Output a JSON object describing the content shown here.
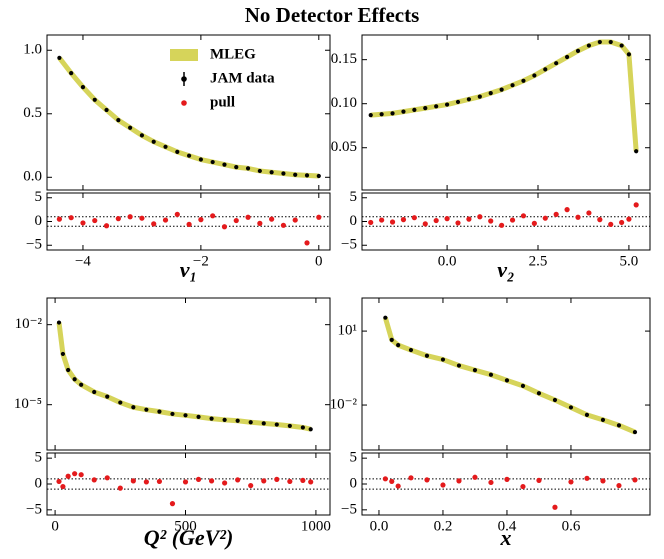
{
  "title": "No Detector Effects",
  "chart_data": [
    {
      "type": "line",
      "xlabel": "ν₁",
      "legend": "upper right",
      "xlim": [
        -4.61,
        0.19
      ],
      "xticks": [
        {
          "value": -4,
          "label": "−4"
        },
        {
          "value": -2,
          "label": "−2"
        },
        0
      ],
      "ylim": [
        -0.1,
        1.12
      ],
      "yticks": [
        {
          "value": 0,
          "label": "0.0"
        },
        0.5,
        {
          "value": 1,
          "label": "1.0"
        }
      ],
      "log_y": false,
      "pull_ylim": [
        -6,
        6
      ],
      "pull_yticks": [
        5,
        0,
        {
          "value": -5,
          "label": "−5"
        }
      ],
      "reference_lines": [
        -1,
        1
      ],
      "x": [
        -4.4,
        -4.2,
        -4.0,
        -3.8,
        -3.6,
        -3.4,
        -3.2,
        -3.0,
        -2.8,
        -2.6,
        -2.4,
        -2.2,
        -2.0,
        -1.8,
        -1.6,
        -1.4,
        -1.2,
        -1.0,
        -0.8,
        -0.6,
        -0.4,
        -0.2,
        0.0
      ],
      "series": [
        {
          "name": "MLEG",
          "color": "#d6d45a",
          "values": [
            0.94,
            0.82,
            0.71,
            0.61,
            0.53,
            0.45,
            0.39,
            0.33,
            0.28,
            0.24,
            0.2,
            0.17,
            0.14,
            0.12,
            0.1,
            0.08,
            0.07,
            0.05,
            0.04,
            0.03,
            0.02,
            0.015,
            0.01
          ]
        },
        {
          "name": "JAM data",
          "color": "#000000",
          "values": [
            0.94,
            0.82,
            0.71,
            0.61,
            0.53,
            0.45,
            0.39,
            0.33,
            0.28,
            0.24,
            0.2,
            0.17,
            0.14,
            0.12,
            0.1,
            0.08,
            0.07,
            0.05,
            0.04,
            0.03,
            0.02,
            0.015,
            0.01
          ]
        },
        {
          "name": "pull",
          "color": "#e41a1c",
          "axis": "pull",
          "values": [
            0.5,
            0.8,
            -0.3,
            0.2,
            -0.9,
            0.6,
            1.0,
            0.7,
            -0.5,
            0.3,
            1.5,
            -0.6,
            0.4,
            1.2,
            -1.1,
            0.2,
            0.9,
            -0.4,
            0.5,
            -0.8,
            0.3,
            -4.5,
            0.9
          ]
        }
      ]
    },
    {
      "type": "line",
      "xlabel": "ν₂",
      "xlim": [
        -2.34,
        5.58
      ],
      "xticks": [
        {
          "value": 0,
          "label": "0.0"
        },
        2.5,
        {
          "value": 5,
          "label": "5.0"
        }
      ],
      "ylim": [
        0.002,
        0.178
      ],
      "yticks": [
        0.05,
        {
          "value": 0.1,
          "label": "0.10"
        },
        0.15
      ],
      "log_y": false,
      "pull_ylim": [
        -6,
        6
      ],
      "pull_yticks": [
        5,
        0,
        {
          "value": -5,
          "label": "−5"
        }
      ],
      "reference_lines": [
        -1,
        1
      ],
      "x": [
        -2.1,
        -1.8,
        -1.5,
        -1.2,
        -0.9,
        -0.6,
        -0.3,
        0,
        0.3,
        0.6,
        0.9,
        1.2,
        1.5,
        1.8,
        2.1,
        2.4,
        2.7,
        3.0,
        3.3,
        3.6,
        3.9,
        4.2,
        4.5,
        4.8,
        5.0,
        5.2
      ],
      "series": [
        {
          "name": "MLEG",
          "color": "#d6d45a",
          "values": [
            0.087,
            0.088,
            0.089,
            0.091,
            0.093,
            0.095,
            0.097,
            0.099,
            0.102,
            0.105,
            0.108,
            0.112,
            0.116,
            0.121,
            0.126,
            0.132,
            0.139,
            0.146,
            0.153,
            0.16,
            0.166,
            0.17,
            0.17,
            0.166,
            0.156,
            0.046
          ]
        },
        {
          "name": "JAM data",
          "color": "#000000",
          "values": [
            0.087,
            0.088,
            0.089,
            0.091,
            0.093,
            0.095,
            0.097,
            0.099,
            0.102,
            0.105,
            0.108,
            0.112,
            0.116,
            0.121,
            0.126,
            0.132,
            0.139,
            0.146,
            0.153,
            0.16,
            0.166,
            0.17,
            0.17,
            0.166,
            0.156,
            0.046
          ]
        },
        {
          "name": "pull",
          "color": "#e41a1c",
          "axis": "pull",
          "values": [
            -0.2,
            0.3,
            -0.1,
            0.4,
            0.8,
            -0.5,
            0.2,
            0.6,
            -0.3,
            0.5,
            1.0,
            0.1,
            -0.8,
            0.3,
            1.2,
            -0.4,
            0.7,
            1.5,
            2.5,
            0.9,
            1.8,
            0.4,
            -0.6,
            -0.2,
            0.5,
            3.5
          ]
        }
      ]
    },
    {
      "type": "line",
      "xlabel": "Q² (GeV²)",
      "xlim": [
        -31,
        1054
      ],
      "xticks": [
        0,
        500,
        1000
      ],
      "ylim": [
        2e-07,
        0.1
      ],
      "yticks": [
        {
          "value": 0.01,
          "label": "10⁻²"
        },
        {
          "value": 1e-05,
          "label": "10⁻⁵"
        }
      ],
      "log_y": true,
      "pull_ylim": [
        -6,
        6
      ],
      "pull_yticks": [
        5,
        0,
        {
          "value": -5,
          "label": "−5"
        }
      ],
      "reference_lines": [
        -1,
        1
      ],
      "x": [
        15,
        30,
        50,
        75,
        100,
        150,
        200,
        250,
        300,
        350,
        400,
        450,
        500,
        550,
        600,
        650,
        700,
        750,
        800,
        850,
        900,
        950,
        980
      ],
      "series": [
        {
          "name": "MLEG",
          "color": "#d6d45a",
          "values": [
            0.012,
            0.0008,
            0.0002,
            9e-05,
            5.6e-05,
            3e-05,
            2e-05,
            1.2e-05,
            8e-06,
            6.5e-06,
            5.5e-06,
            4.5e-06,
            4e-06,
            3.5e-06,
            3e-06,
            2.7e-06,
            2.5e-06,
            2.2e-06,
            2e-06,
            1.8e-06,
            1.6e-06,
            1.4e-06,
            1.2e-06
          ]
        },
        {
          "name": "JAM data",
          "color": "#000000",
          "values": [
            0.012,
            0.0008,
            0.0002,
            9e-05,
            5.6e-05,
            3e-05,
            2e-05,
            1.2e-05,
            8e-06,
            6.5e-06,
            5.5e-06,
            4.5e-06,
            4e-06,
            3.5e-06,
            3e-06,
            2.7e-06,
            2.5e-06,
            2.2e-06,
            2e-06,
            1.8e-06,
            1.6e-06,
            1.4e-06,
            1.2e-06
          ]
        },
        {
          "name": "pull",
          "color": "#e41a1c",
          "axis": "pull",
          "values": [
            0.5,
            -0.5,
            1.5,
            2.0,
            1.8,
            0.8,
            1.2,
            -0.8,
            0.6,
            0.4,
            0.5,
            -3.8,
            0.4,
            0.9,
            0.6,
            0.2,
            0.8,
            -0.3,
            0.6,
            0.9,
            0.5,
            0.7,
            0.4
          ]
        }
      ]
    },
    {
      "type": "line",
      "xlabel": "x",
      "xlim": [
        -0.053,
        0.847
      ],
      "xticks": [
        {
          "value": 0,
          "label": "0.0"
        },
        0.2,
        0.4,
        0.6
      ],
      "ylim": [
        0.00015,
        220
      ],
      "yticks": [
        {
          "value": 10,
          "label": "10¹"
        },
        {
          "value": 0.01,
          "label": "10⁻²"
        }
      ],
      "log_y": true,
      "pull_ylim": [
        -6,
        6
      ],
      "pull_yticks": [
        5,
        0,
        {
          "value": -5,
          "label": "−5"
        }
      ],
      "reference_lines": [
        -1,
        1
      ],
      "x": [
        0.02,
        0.04,
        0.06,
        0.1,
        0.15,
        0.2,
        0.25,
        0.3,
        0.35,
        0.4,
        0.45,
        0.5,
        0.55,
        0.6,
        0.65,
        0.7,
        0.75,
        0.8
      ],
      "series": [
        {
          "name": "MLEG",
          "color": "#d6d45a",
          "values": [
            35,
            4.4,
            2.7,
            1.7,
            1.0,
            0.7,
            0.4,
            0.26,
            0.17,
            0.1,
            0.06,
            0.03,
            0.016,
            0.008,
            0.004,
            0.0025,
            0.0015,
            0.0008
          ]
        },
        {
          "name": "JAM data",
          "color": "#000000",
          "values": [
            35,
            4.4,
            2.7,
            1.7,
            1.0,
            0.7,
            0.4,
            0.26,
            0.17,
            0.1,
            0.06,
            0.03,
            0.016,
            0.008,
            0.004,
            0.0025,
            0.0015,
            0.0008
          ]
        },
        {
          "name": "pull",
          "color": "#e41a1c",
          "axis": "pull",
          "values": [
            1.0,
            0.5,
            -0.4,
            1.2,
            0.8,
            -0.2,
            0.6,
            1.3,
            0.3,
            0.9,
            -0.5,
            0.7,
            -4.5,
            0.4,
            1.1,
            0.6,
            -0.3,
            0.8
          ]
        }
      ]
    }
  ]
}
